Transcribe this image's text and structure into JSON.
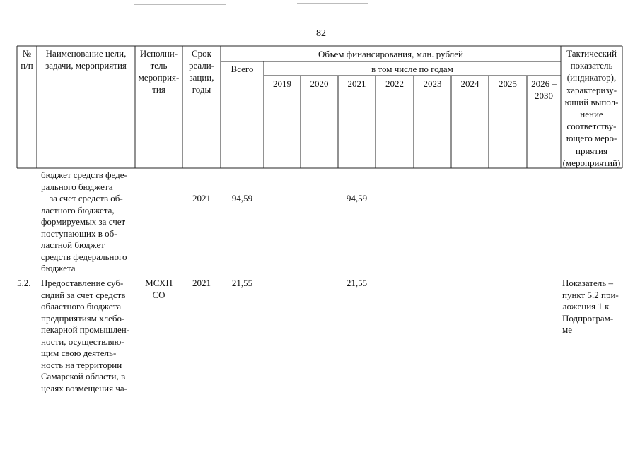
{
  "page": {
    "number": "82"
  },
  "table_header": {
    "col_num": "№\nп/п",
    "col_name": "Наименование цели,\nзадачи, мероприятия",
    "col_executor": "Исполни-\nтель\nмероприя-\nтия",
    "col_period": "Срок\nреали-\nзации,\nгоды",
    "col_funding": "Объем финансирования, млн. рублей",
    "col_total": "Всего",
    "col_by_years": "в том числе по годам",
    "years": [
      "2019",
      "2020",
      "2021",
      "2022",
      "2023",
      "2024",
      "2025",
      "2026 –\n2030"
    ],
    "col_indicator": "Тактический\nпоказатель\n(индикатор),\nхарактеризу-\nющий выпол-\nнение\nсоответству-\nющего меро-\nприятия\n(мероприятий)"
  },
  "rows": [
    {
      "name_lines": [
        "бюджет средств феде-",
        "рального бюджета"
      ]
    },
    {
      "name_lines": [
        "за счет средств об-",
        "ластного бюджета,",
        "формируемых за счет",
        "поступающих в об-",
        "ластной бюджет",
        "средств федерального",
        "бюджета"
      ],
      "period": "2021",
      "total": "94,59",
      "y2021": "94,59"
    },
    {
      "num": "5.2.",
      "name_lines": [
        "Предоставление суб-",
        "сидий за счет средств",
        "областного бюджета",
        "предприятиям хлебо-",
        "пекарной промышлен-",
        "ности, осуществляю-",
        "щим свою деятель-",
        "ность на территории",
        "Самарской области, в",
        "целях возмещения ча-"
      ],
      "executor": "МСХП\nСО",
      "period": "2021",
      "total": "21,55",
      "y2021": "21,55",
      "indicator_lines": [
        "Показатель –",
        "пункт 5.2 при-",
        "ложения 1 к",
        "Подпрограм-",
        "ме"
      ]
    }
  ]
}
